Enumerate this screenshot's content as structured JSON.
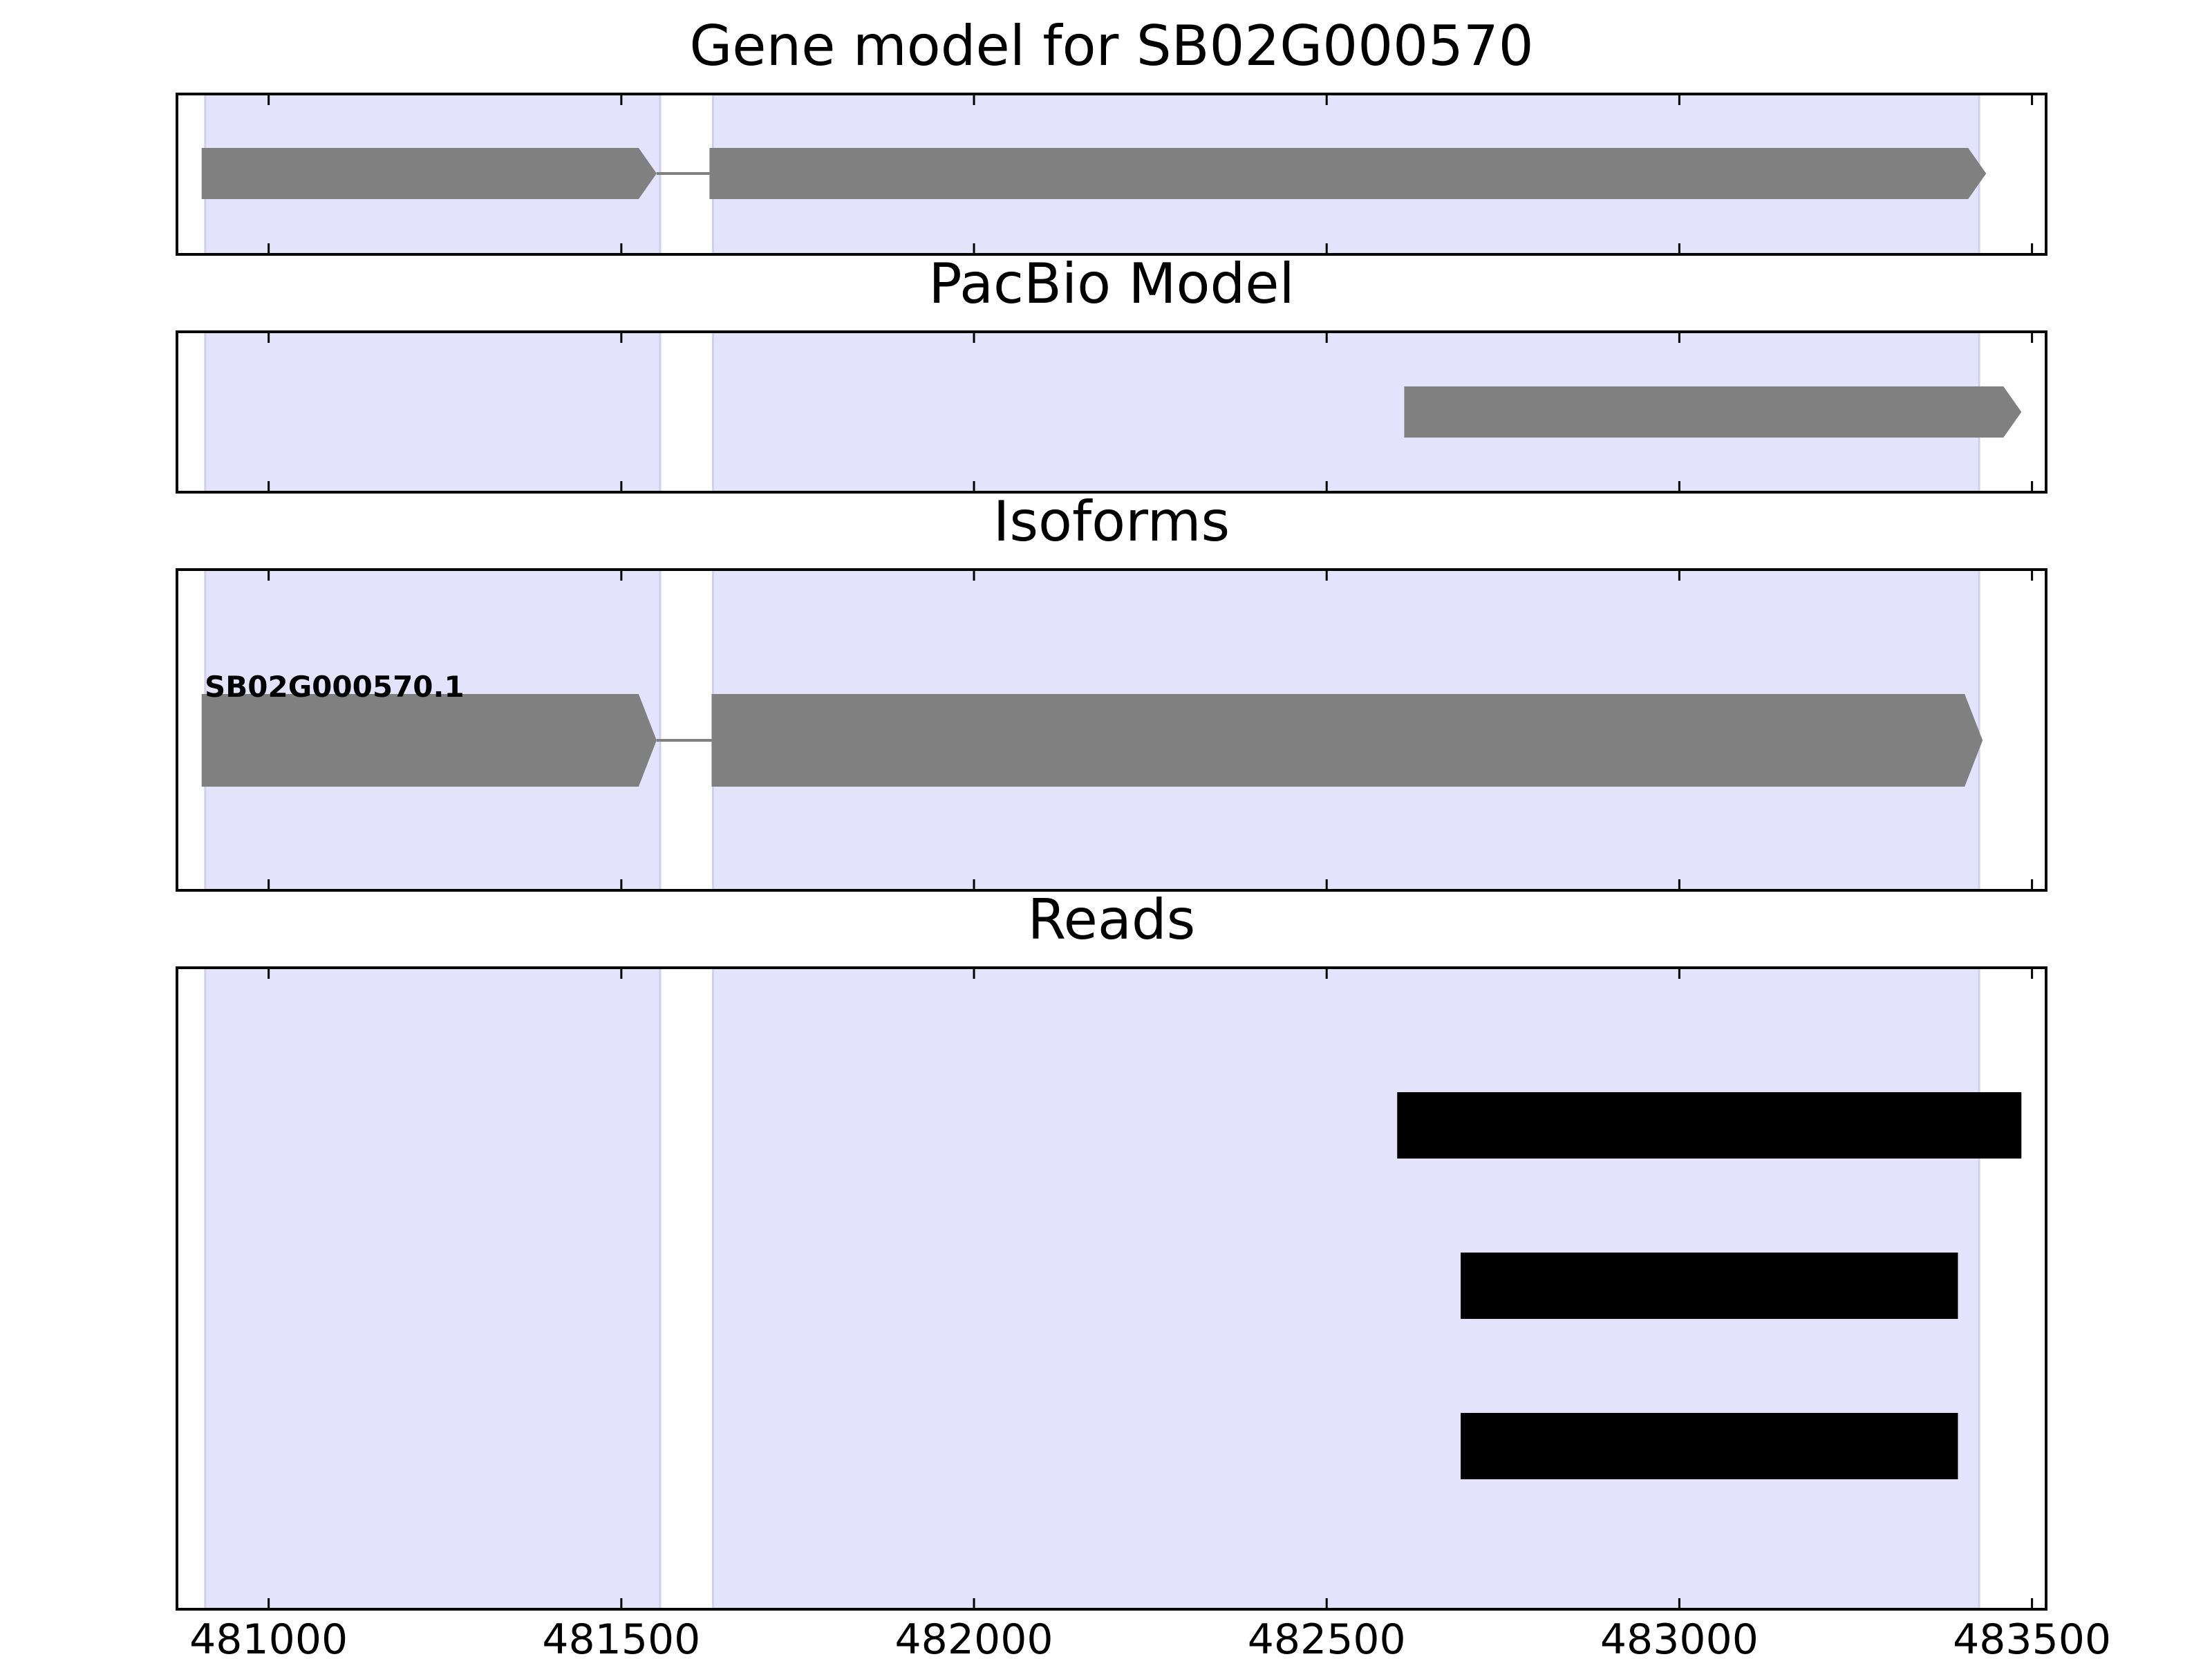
{
  "chart_data": {
    "type": "gene-model-tracks",
    "x_range": [
      480870,
      483520
    ],
    "x_ticks": [
      481000,
      481500,
      482000,
      482500,
      483000,
      483500
    ],
    "x_tick_labels": [
      "481000",
      "481500",
      "482000",
      "482500",
      "483000",
      "483500"
    ],
    "exon_shading": [
      [
        480910,
        481555
      ],
      [
        481630,
        483425
      ]
    ],
    "colors": {
      "shading": "#e3e3fc",
      "shading_edge": "#cfcff0",
      "feature": "#808080",
      "intron": "#808080",
      "read": "#000000",
      "axis": "#000000"
    },
    "panels": [
      {
        "key": "gene_model",
        "title": "Gene model for SB02G000570",
        "features": [
          {
            "start": 480905,
            "end": 481550,
            "kind": "exon-arrow"
          },
          {
            "start": 481550,
            "end": 481625,
            "kind": "intron"
          },
          {
            "start": 481625,
            "end": 483435,
            "kind": "exon-arrow"
          }
        ]
      },
      {
        "key": "pacbio_model",
        "title": "PacBio Model",
        "features": [
          {
            "start": 482610,
            "end": 483485,
            "kind": "exon-arrow"
          }
        ]
      },
      {
        "key": "isoforms",
        "title": "Isoforms",
        "isoform_label": "SB02G000570.1",
        "features": [
          {
            "start": 480905,
            "end": 481550,
            "kind": "exon-arrow"
          },
          {
            "start": 481550,
            "end": 481628,
            "kind": "intron"
          },
          {
            "start": 481628,
            "end": 483430,
            "kind": "exon-arrow"
          }
        ]
      },
      {
        "key": "reads",
        "title": "Reads",
        "reads": [
          {
            "start": 482600,
            "end": 483485
          },
          {
            "start": 482690,
            "end": 483395
          },
          {
            "start": 482690,
            "end": 483395
          }
        ]
      }
    ]
  }
}
